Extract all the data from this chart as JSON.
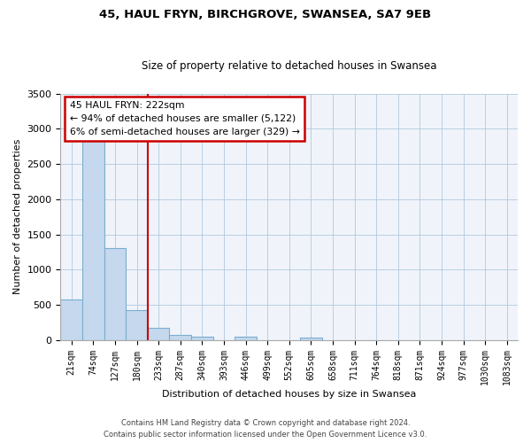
{
  "title": "45, HAUL FRYN, BIRCHGROVE, SWANSEA, SA7 9EB",
  "subtitle": "Size of property relative to detached houses in Swansea",
  "xlabel": "Distribution of detached houses by size in Swansea",
  "ylabel": "Number of detached properties",
  "bar_labels": [
    "21sqm",
    "74sqm",
    "127sqm",
    "180sqm",
    "233sqm",
    "287sqm",
    "340sqm",
    "393sqm",
    "446sqm",
    "499sqm",
    "552sqm",
    "605sqm",
    "658sqm",
    "711sqm",
    "764sqm",
    "818sqm",
    "871sqm",
    "924sqm",
    "977sqm",
    "1030sqm",
    "1083sqm"
  ],
  "bar_values": [
    580,
    2900,
    1310,
    420,
    175,
    70,
    50,
    0,
    50,
    0,
    0,
    30,
    0,
    0,
    0,
    0,
    0,
    0,
    0,
    0,
    0
  ],
  "bar_color": "#c5d8ed",
  "bar_edge_color": "#7aaed0",
  "vline_x_index": 3.5,
  "vline_color": "#cc0000",
  "ylim": [
    0,
    3500
  ],
  "yticks": [
    0,
    500,
    1000,
    1500,
    2000,
    2500,
    3000,
    3500
  ],
  "annotation_line1": "45 HAUL FRYN: 222sqm",
  "annotation_line2": "← 94% of detached houses are smaller (5,122)",
  "annotation_line3": "6% of semi-detached houses are larger (329) →",
  "annotation_box_color": "white",
  "annotation_box_edge": "#cc0000",
  "footer1": "Contains HM Land Registry data © Crown copyright and database right 2024.",
  "footer2": "Contains public sector information licensed under the Open Government Licence v3.0.",
  "bg_color": "#f0f4fa"
}
